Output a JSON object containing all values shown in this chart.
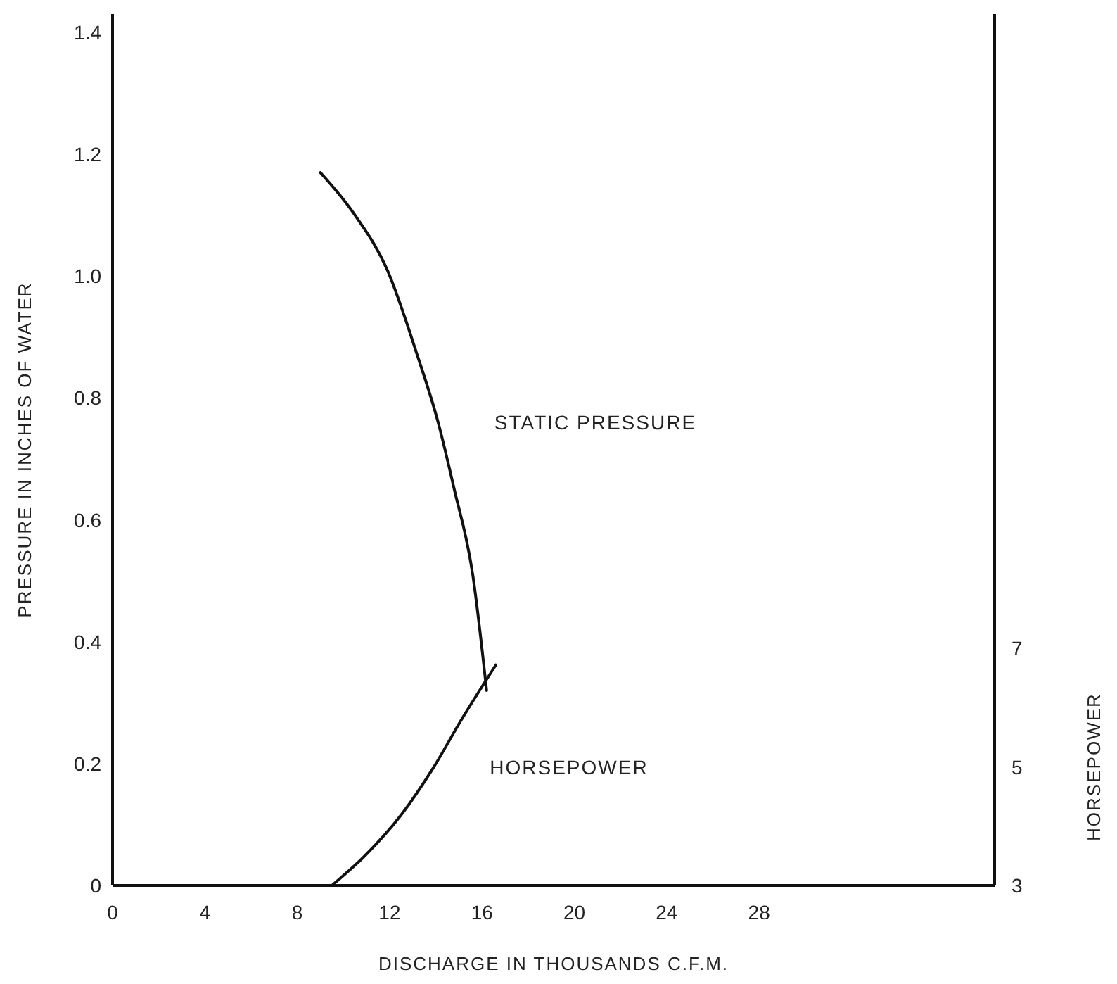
{
  "chart_data": {
    "type": "line",
    "xlabel": "DISCHARGE IN THOUSANDS C.F.M.",
    "ylabel": "PRESSURE IN INCHES OF WATER",
    "y2label": "HORSEPOWER",
    "xlim": [
      0,
      38.2
    ],
    "xticks": [
      0,
      4,
      8,
      12,
      16,
      20,
      24,
      28
    ],
    "ylim": [
      0,
      1.43
    ],
    "yticks": [
      0,
      0.2,
      0.4,
      0.6,
      0.8,
      {
        "value": 1.0,
        "label": "1.0"
      },
      1.2,
      1.4
    ],
    "y2lim": [
      3,
      17.7
    ],
    "y2ticks": [
      3,
      5,
      7
    ],
    "grid": false,
    "legend": false,
    "marker": "none",
    "line_style": "solid",
    "series": [
      {
        "name": "STATIC PRESSURE",
        "color": "#111111",
        "x": [
          9.0,
          10.5,
          11.9,
          13.2,
          14.1,
          14.8,
          15.6,
          16.2
        ],
        "values": [
          1.17,
          1.1,
          1.01,
          0.87,
          0.76,
          0.65,
          0.51,
          0.32
        ]
      },
      {
        "name": "HORSEPOWER",
        "color": "#111111",
        "axis": "y2",
        "x": [
          9.5,
          10.9,
          12.5,
          13.9,
          15.1,
          16.6
        ],
        "values": [
          3.0,
          3.49,
          4.19,
          4.99,
          5.79,
          6.72
        ]
      }
    ]
  }
}
